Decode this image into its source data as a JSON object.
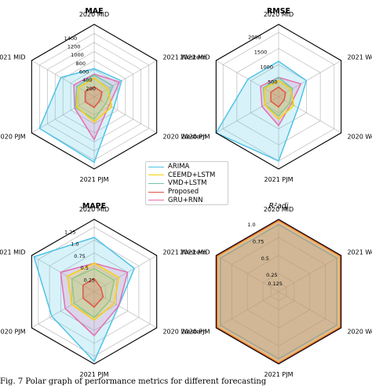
{
  "chart_data": [
    {
      "type": "radar",
      "title": "MAE",
      "axes": [
        "2020 MID",
        "2021 Western",
        "2020 Western",
        "2021 PJM",
        "2020 PJM",
        "2021 MID"
      ],
      "rticks": [
        "200",
        "400",
        "600",
        "800",
        "1000",
        "1200",
        "1400"
      ],
      "rmax": 1600,
      "series": [
        {
          "name": "ARIMA",
          "values": [
            620,
            700,
            500,
            1450,
            1400,
            850
          ]
        },
        {
          "name": "CEEMD+LSTM",
          "values": [
            420,
            350,
            450,
            560,
            450,
            400
          ]
        },
        {
          "name": "VMD+LSTM",
          "values": [
            480,
            480,
            300,
            500,
            480,
            450
          ]
        },
        {
          "name": "Proposed",
          "values": [
            220,
            200,
            150,
            240,
            230,
            230
          ]
        },
        {
          "name": "GRU+RNN",
          "values": [
            500,
            650,
            380,
            950,
            500,
            520
          ]
        }
      ]
    },
    {
      "type": "radar",
      "title": "RMSE",
      "axes": [
        "2020 MID",
        "2021 Western",
        "2020 Western",
        "2021 PJM",
        "2020 PJM",
        "2021 MID"
      ],
      "rticks": [
        "500",
        "1000",
        "1500",
        "2000"
      ],
      "rmax": 2250,
      "series": [
        {
          "name": "ARIMA",
          "values": [
            1100,
            1000,
            700,
            2000,
            2250,
            1100
          ]
        },
        {
          "name": "CEEMD+LSTM",
          "values": [
            500,
            450,
            550,
            700,
            500,
            520
          ]
        },
        {
          "name": "VMD+LSTM",
          "values": [
            600,
            500,
            400,
            600,
            500,
            550
          ]
        },
        {
          "name": "Proposed",
          "values": [
            300,
            250,
            200,
            320,
            280,
            280
          ]
        },
        {
          "name": "GRU+RNN",
          "values": [
            600,
            800,
            450,
            900,
            600,
            650
          ]
        }
      ]
    },
    {
      "type": "radar",
      "title": "MAPE",
      "axes": [
        "2020 MID",
        "2021 Western",
        "2020 Western",
        "2021 PJM",
        "2020 PJM",
        "2021 MID"
      ],
      "rticks": [
        "0.25",
        "0.5",
        "0.75",
        "1.0",
        "1.25"
      ],
      "rmax": 1.4,
      "series": [
        {
          "name": "ARIMA",
          "values": [
            1.05,
            0.9,
            0.55,
            1.35,
            0.95,
            1.35
          ]
        },
        {
          "name": "CEEMD+LSTM",
          "values": [
            0.55,
            0.55,
            0.45,
            0.55,
            0.5,
            0.6
          ]
        },
        {
          "name": "VMD+LSTM",
          "values": [
            0.45,
            0.45,
            0.35,
            0.5,
            0.45,
            0.5
          ]
        },
        {
          "name": "Proposed",
          "values": [
            0.25,
            0.15,
            0.2,
            0.3,
            0.25,
            0.25
          ]
        },
        {
          "name": "GRU+RNN",
          "values": [
            0.55,
            0.75,
            0.55,
            0.85,
            0.65,
            0.75
          ]
        }
      ]
    },
    {
      "type": "radar",
      "title": "R²adj",
      "axes": [
        "2020 MID",
        "2021 Western",
        "2020 Western",
        "2021 PJM",
        "2020 PJM",
        "2021 MID"
      ],
      "rticks": [
        "0.125",
        "0.25",
        "0.5",
        "0.75",
        "1.0"
      ],
      "rmax": 1.0,
      "series": [
        {
          "name": "ARIMA",
          "values": [
            0.93,
            0.93,
            0.93,
            0.93,
            0.93,
            0.93
          ]
        },
        {
          "name": "CEEMD+LSTM",
          "values": [
            0.98,
            0.98,
            0.98,
            0.98,
            0.98,
            0.98
          ]
        },
        {
          "name": "VMD+LSTM",
          "values": [
            0.98,
            0.98,
            0.98,
            0.98,
            0.98,
            0.98
          ]
        },
        {
          "name": "Proposed",
          "values": [
            0.99,
            0.99,
            0.99,
            0.99,
            0.99,
            0.99
          ]
        },
        {
          "name": "GRU+RNN",
          "values": [
            0.98,
            0.98,
            0.98,
            0.98,
            0.98,
            0.98
          ]
        }
      ]
    }
  ],
  "legend": [
    {
      "name": "ARIMA",
      "color": "#4fc3e6"
    },
    {
      "name": "CEEMD+LSTM",
      "color": "#f5d20a"
    },
    {
      "name": "VMD+LSTM",
      "color": "#6fc7a8"
    },
    {
      "name": "Proposed",
      "color": "#e05545"
    },
    {
      "name": "GRU+RNN",
      "color": "#e46fb0"
    }
  ],
  "caption": "Fig. 7  Polar graph of performance metrics for different forecasting"
}
